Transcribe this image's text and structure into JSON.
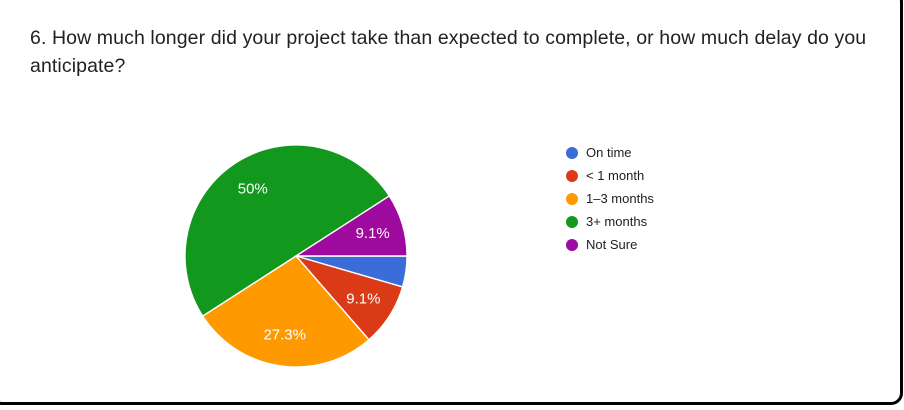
{
  "chart_data": {
    "type": "pie",
    "title": "6. How much longer did your project take than expected to complete, or how much delay do you anticipate?",
    "legend_position": "right",
    "start_at": "3-oclock",
    "direction": "clockwise",
    "slices": [
      {
        "name": "On time",
        "pct": 4.5,
        "label": "",
        "color": "#3B6DD8"
      },
      {
        "name": "< 1 month",
        "pct": 9.1,
        "label": "9.1%",
        "color": "#DB3A17"
      },
      {
        "name": "1–3 months",
        "pct": 27.3,
        "label": "27.3%",
        "color": "#FF9900"
      },
      {
        "name": "3+ months",
        "pct": 50,
        "label": "50%",
        "color": "#12991D"
      },
      {
        "name": "Not Sure",
        "pct": 9.1,
        "label": "9.1%",
        "color": "#9D0A9D"
      }
    ],
    "label_color": "#ffffff"
  }
}
